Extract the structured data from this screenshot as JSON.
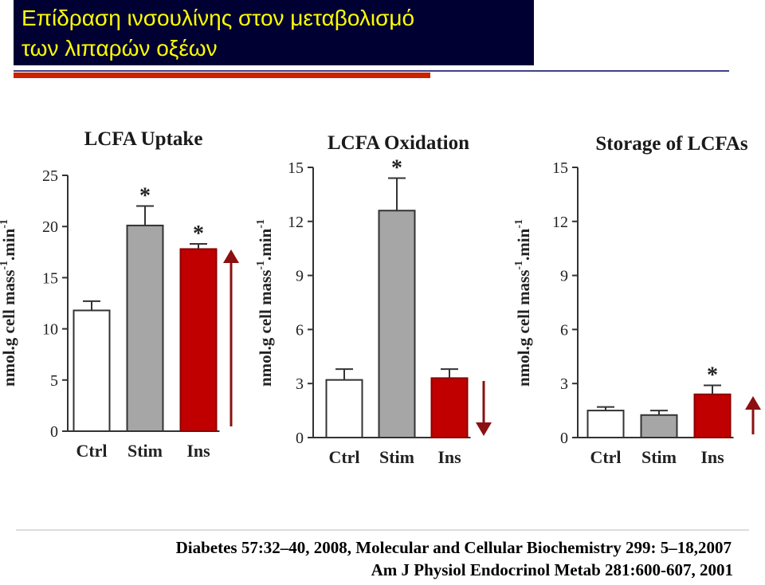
{
  "title": [
    "Επίδραση ινσουλίνης στον μεταβολισμό",
    "των λιπαρών οξέων"
  ],
  "references": [
    "Diabetes 57:32–40, 2008, Molecular and Cellular Biochemistry 299: 5–18,2007",
    "Am J Physiol Endocrinol Metab 281:600-607, 2001"
  ],
  "chart_data": [
    {
      "type": "bar",
      "title": "LCFA Uptake",
      "ylabel": [
        "nmol.g cell mass",
        "-1",
        ".min",
        "-1"
      ],
      "categories": [
        "Ctrl",
        "Stim",
        "Ins"
      ],
      "values": [
        11.8,
        20.1,
        17.8
      ],
      "errors": [
        0.9,
        1.9,
        0.5
      ],
      "colors": [
        "#ffffff",
        "#a6a6a6",
        "#c00000"
      ],
      "markers": [
        null,
        "*",
        "*"
      ],
      "ylim": [
        0,
        25
      ],
      "yticks": [
        0,
        5,
        10,
        15,
        20,
        25
      ]
    },
    {
      "type": "bar",
      "title": "LCFA Oxidation",
      "ylabel": [
        "nmol.g cell mass",
        "-1",
        ".min",
        "-1"
      ],
      "categories": [
        "Ctrl",
        "Stim",
        "Ins"
      ],
      "values": [
        3.2,
        12.6,
        3.3
      ],
      "errors": [
        0.6,
        1.8,
        0.5
      ],
      "colors": [
        "#ffffff",
        "#a6a6a6",
        "#c00000"
      ],
      "markers": [
        null,
        "*",
        null
      ],
      "ylim": [
        0,
        15
      ],
      "yticks": [
        0,
        3,
        6,
        9,
        12,
        15
      ]
    },
    {
      "type": "bar",
      "title": "Storage of LCFAs",
      "ylabel": [
        "nmol.g cell mass",
        "-1",
        ".min",
        "-1"
      ],
      "categories": [
        "Ctrl",
        "Stim",
        "Ins"
      ],
      "values": [
        1.5,
        1.25,
        2.4
      ],
      "errors": [
        0.2,
        0.25,
        0.5
      ],
      "colors": [
        "#ffffff",
        "#a6a6a6",
        "#c00000"
      ],
      "markers": [
        null,
        null,
        "*"
      ],
      "ylim": [
        0,
        15
      ],
      "yticks": [
        0,
        3,
        6,
        9,
        12,
        15
      ]
    }
  ]
}
